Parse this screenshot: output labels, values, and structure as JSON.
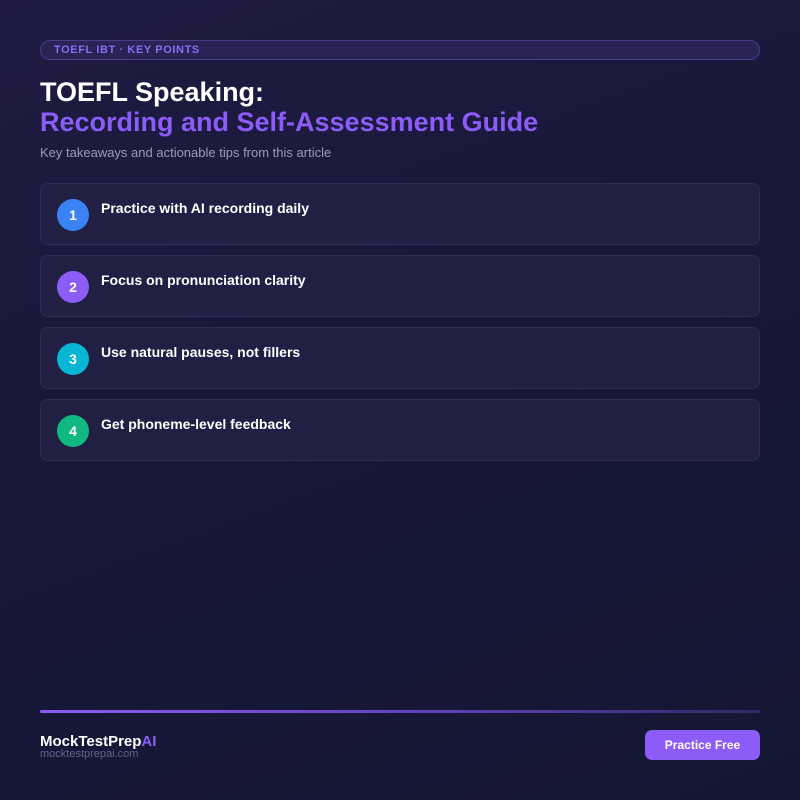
{
  "header": {
    "badge": "TOEFL IBT · KEY POINTS",
    "title_line1": "TOEFL Speaking:",
    "title_line2": "Recording and Self-Assessment Guide",
    "subtitle": "Key takeaways and actionable tips from this article"
  },
  "points": [
    {
      "number": "1",
      "text": "Practice with AI recording daily",
      "color": "#3b82f6"
    },
    {
      "number": "2",
      "text": "Focus on pronunciation clarity",
      "color": "#8b5cf6"
    },
    {
      "number": "3",
      "text": "Use natural pauses, not fillers",
      "color": "#06b6d4"
    },
    {
      "number": "4",
      "text": "Get phoneme-level feedback",
      "color": "#10b981"
    }
  ],
  "footer": {
    "brand_main": "MockTestPrep",
    "brand_accent": "AI",
    "url": "mocktestprepai.com",
    "cta_label": "Practice Free"
  },
  "colors": {
    "accent": "#8b5cf6",
    "background": "#18183a"
  }
}
